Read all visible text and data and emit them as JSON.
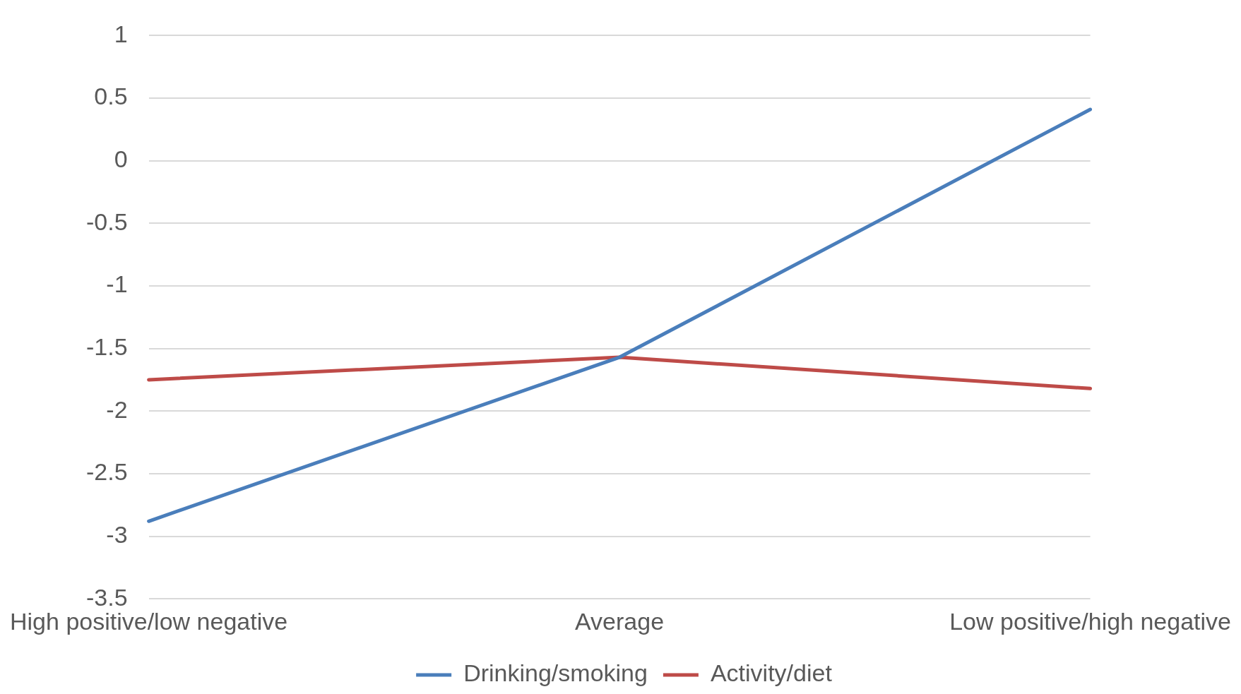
{
  "chart_data": {
    "type": "line",
    "categories": [
      "High positive/low negative",
      "Average",
      "Low positive/high negative"
    ],
    "series": [
      {
        "name": "Drinking/smoking",
        "color": "#4a7ebb",
        "values": [
          -2.88,
          -1.57,
          0.41
        ]
      },
      {
        "name": "Activity/diet",
        "color": "#be4b48",
        "values": [
          -1.75,
          -1.57,
          -1.82
        ]
      }
    ],
    "ylim": [
      -3.5,
      1
    ],
    "yticks": [
      -3.5,
      -3,
      -2.5,
      -2,
      -1.5,
      -1,
      -0.5,
      0,
      0.5,
      1
    ],
    "grid": "y",
    "legend": "bottom",
    "marker": "none",
    "line_style": "solid"
  }
}
